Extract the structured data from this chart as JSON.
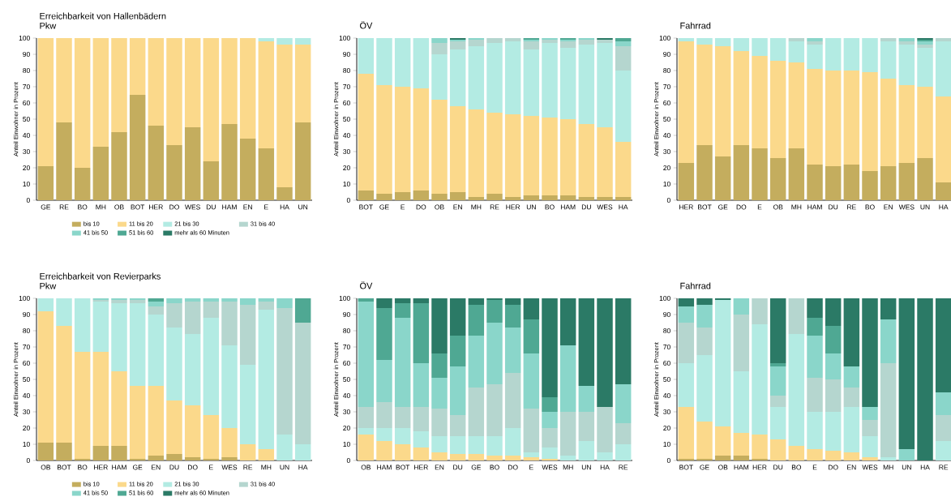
{
  "chart_data": [
    {
      "type": "bar",
      "stacked": true,
      "title": "Erreichbarkeit von Hallenbädern",
      "subtitle": "Pkw",
      "ylabel": "Anteil Einwohner in Prozent",
      "legend": "bottom",
      "ylim": [
        0,
        100
      ],
      "yticks": [
        0,
        10,
        20,
        30,
        40,
        50,
        60,
        70,
        80,
        90,
        100
      ],
      "categories": [
        "GE",
        "RE",
        "BO",
        "MH",
        "OB",
        "BOT",
        "HER",
        "DO",
        "WES",
        "DU",
        "HAM",
        "EN",
        "E",
        "HA",
        "UN"
      ],
      "series": [
        {
          "name": "bis 10",
          "color": "#c4ad5e",
          "values": [
            21,
            48,
            20,
            33,
            42,
            65,
            46,
            34,
            45,
            24,
            47,
            38,
            32,
            8,
            48
          ]
        },
        {
          "name": "11 bis 20",
          "color": "#fbd98b",
          "values": [
            79,
            52,
            80,
            67,
            58,
            35,
            54,
            66,
            55,
            76,
            53,
            62,
            66,
            88,
            48
          ]
        },
        {
          "name": "21 bis 30",
          "color": "#b3ebe3",
          "values": [
            0,
            0,
            0,
            0,
            0,
            0,
            0,
            0,
            0,
            0,
            0,
            0,
            2,
            4,
            4
          ]
        },
        {
          "name": "31 bis 40",
          "color": "#b5d6cf",
          "values": [
            0,
            0,
            0,
            0,
            0,
            0,
            0,
            0,
            0,
            0,
            0,
            0,
            0,
            0,
            0
          ]
        },
        {
          "name": "41 bis 50",
          "color": "#8ad6ca",
          "values": [
            0,
            0,
            0,
            0,
            0,
            0,
            0,
            0,
            0,
            0,
            0,
            0,
            0,
            0,
            0
          ]
        },
        {
          "name": "51 bis 60",
          "color": "#4fa893",
          "values": [
            0,
            0,
            0,
            0,
            0,
            0,
            0,
            0,
            0,
            0,
            0,
            0,
            0,
            0,
            0
          ]
        },
        {
          "name": "mehr als 60 Minuten",
          "color": "#2b7a66",
          "values": [
            0,
            0,
            0,
            0,
            0,
            0,
            0,
            0,
            0,
            0,
            0,
            0,
            0,
            0,
            0
          ]
        }
      ]
    },
    {
      "type": "bar",
      "stacked": true,
      "title": "ÖV",
      "ylabel": "Anteil Einwohner in Prozent",
      "ylim": [
        0,
        100
      ],
      "yticks": [
        0,
        10,
        20,
        30,
        40,
        50,
        60,
        70,
        80,
        90,
        100
      ],
      "categories": [
        "BOT",
        "GE",
        "E",
        "DO",
        "OB",
        "EN",
        "MH",
        "RE",
        "HER",
        "UN",
        "BO",
        "HAM",
        "DU",
        "WES",
        "HA"
      ],
      "series": [
        {
          "color": "#c4ad5e",
          "values": [
            6,
            4,
            5,
            6,
            4,
            5,
            2,
            4,
            2,
            3,
            3,
            3,
            2,
            2,
            2
          ]
        },
        {
          "color": "#fbd98b",
          "values": [
            72,
            67,
            65,
            63,
            58,
            53,
            54,
            50,
            51,
            49,
            48,
            47,
            45,
            43,
            34
          ]
        },
        {
          "color": "#b3ebe3",
          "values": [
            22,
            29,
            30,
            31,
            28,
            35,
            39,
            43,
            45,
            41,
            46,
            44,
            49,
            52,
            44
          ]
        },
        {
          "color": "#b5d6cf",
          "values": [
            0,
            0,
            0,
            0,
            7,
            5,
            4,
            3,
            2,
            5,
            2,
            4,
            3,
            2,
            15
          ]
        },
        {
          "color": "#8ad6ca",
          "values": [
            0,
            0,
            0,
            0,
            3,
            1,
            1,
            0,
            0,
            1,
            1,
            1,
            1,
            0,
            3
          ]
        },
        {
          "color": "#4fa893",
          "values": [
            0,
            0,
            0,
            0,
            0,
            0,
            0,
            0,
            0,
            1,
            0,
            1,
            0,
            0,
            2
          ]
        },
        {
          "color": "#2b7a66",
          "values": [
            0,
            0,
            0,
            0,
            0,
            1,
            0,
            0,
            0,
            0,
            0,
            0,
            0,
            1,
            0
          ]
        }
      ]
    },
    {
      "type": "bar",
      "stacked": true,
      "title": "Fahrrad",
      "ylabel": "Anteil Einwohner in Prozent",
      "ylim": [
        0,
        100
      ],
      "yticks": [
        0,
        10,
        20,
        30,
        40,
        50,
        60,
        70,
        80,
        90,
        100
      ],
      "categories": [
        "HER",
        "BOT",
        "GE",
        "DO",
        "E",
        "OB",
        "MH",
        "HAM",
        "DU",
        "RE",
        "BO",
        "EN",
        "WES",
        "UN",
        "HA"
      ],
      "series": [
        {
          "color": "#c4ad5e",
          "values": [
            23,
            34,
            27,
            34,
            32,
            26,
            32,
            22,
            21,
            22,
            18,
            21,
            23,
            26,
            11
          ]
        },
        {
          "color": "#fbd98b",
          "values": [
            75,
            62,
            68,
            58,
            57,
            60,
            53,
            59,
            59,
            58,
            61,
            54,
            48,
            44,
            53
          ]
        },
        {
          "color": "#b3ebe3",
          "values": [
            2,
            4,
            5,
            8,
            11,
            14,
            13,
            15,
            20,
            20,
            21,
            23,
            25,
            24,
            34
          ]
        },
        {
          "color": "#b5d6cf",
          "values": [
            0,
            0,
            0,
            0,
            0,
            0,
            2,
            2,
            0,
            0,
            0,
            2,
            2,
            2,
            2
          ]
        },
        {
          "color": "#8ad6ca",
          "values": [
            0,
            0,
            0,
            0,
            0,
            0,
            0,
            2,
            0,
            0,
            0,
            0,
            2,
            2,
            0
          ]
        },
        {
          "color": "#4fa893",
          "values": [
            0,
            0,
            0,
            0,
            0,
            0,
            0,
            0,
            0,
            0,
            0,
            0,
            0,
            1,
            0
          ]
        },
        {
          "color": "#2b7a66",
          "values": [
            0,
            0,
            0,
            0,
            0,
            0,
            0,
            0,
            0,
            0,
            0,
            0,
            0,
            1,
            0
          ]
        }
      ]
    },
    {
      "type": "bar",
      "stacked": true,
      "title": "Erreichbarkeit von Revierparks",
      "subtitle": "Pkw",
      "ylabel": "Anteil Einwohner in Prozent",
      "legend": "bottom",
      "ylim": [
        0,
        100
      ],
      "yticks": [
        0,
        10,
        20,
        30,
        40,
        50,
        60,
        70,
        80,
        90,
        100
      ],
      "categories": [
        "OB",
        "BOT",
        "BO",
        "HER",
        "HAM",
        "GE",
        "EN",
        "DU",
        "DO",
        "E",
        "WES",
        "RE",
        "MH",
        "UN",
        "HA"
      ],
      "series": [
        {
          "name": "bis 10",
          "color": "#c4ad5e",
          "values": [
            11,
            11,
            1,
            9,
            9,
            1,
            3,
            4,
            2,
            1,
            2,
            0,
            0,
            0,
            0
          ]
        },
        {
          "name": "11 bis 20",
          "color": "#fbd98b",
          "values": [
            81,
            72,
            66,
            58,
            46,
            45,
            43,
            33,
            32,
            27,
            18,
            10,
            7,
            0,
            0
          ]
        },
        {
          "name": "21 bis 30",
          "color": "#b3ebe3",
          "values": [
            8,
            17,
            33,
            31,
            42,
            51,
            44,
            45,
            44,
            60,
            51,
            49,
            86,
            16,
            10
          ]
        },
        {
          "name": "31 bis 40",
          "color": "#b5d6cf",
          "values": [
            0,
            0,
            0,
            1,
            2,
            2,
            5,
            15,
            20,
            10,
            27,
            37,
            5,
            78,
            75
          ]
        },
        {
          "name": "41 bis 50",
          "color": "#8ad6ca",
          "values": [
            0,
            0,
            0,
            1,
            1,
            1,
            3,
            3,
            2,
            2,
            2,
            4,
            2,
            6,
            0
          ]
        },
        {
          "name": "51 bis 60",
          "color": "#4fa893",
          "values": [
            0,
            0,
            0,
            0,
            0,
            0,
            2,
            0,
            0,
            0,
            0,
            0,
            0,
            0,
            15
          ]
        },
        {
          "name": "mehr als 60 Minuten",
          "color": "#2b7a66",
          "values": [
            0,
            0,
            0,
            0,
            0,
            0,
            0,
            0,
            0,
            0,
            0,
            0,
            0,
            0,
            0
          ]
        }
      ]
    },
    {
      "type": "bar",
      "stacked": true,
      "title": "ÖV",
      "ylabel": "Anteil Einwohner in Prozent",
      "ylim": [
        0,
        100
      ],
      "yticks": [
        0,
        10,
        20,
        30,
        40,
        50,
        60,
        70,
        80,
        90,
        100
      ],
      "categories": [
        "OB",
        "HAM",
        "BOT",
        "HER",
        "EN",
        "DU",
        "GE",
        "BO",
        "DO",
        "E",
        "WES",
        "MH",
        "UN",
        "HA",
        "RE"
      ],
      "series": [
        {
          "color": "#c4ad5e",
          "values": [
            0,
            0,
            0,
            0,
            0,
            0,
            0,
            0,
            0,
            0,
            0,
            0,
            0,
            0,
            0
          ]
        },
        {
          "color": "#fbd98b",
          "values": [
            16,
            12,
            10,
            8,
            5,
            4,
            4,
            3,
            3,
            2,
            1,
            0,
            0,
            0,
            0
          ]
        },
        {
          "color": "#b3ebe3",
          "values": [
            4,
            8,
            10,
            10,
            10,
            11,
            11,
            12,
            17,
            3,
            7,
            3,
            12,
            5,
            10
          ]
        },
        {
          "color": "#b5d6cf",
          "values": [
            13,
            16,
            13,
            15,
            17,
            13,
            30,
            32,
            34,
            27,
            12,
            27,
            18,
            28,
            13
          ]
        },
        {
          "color": "#8ad6ca",
          "values": [
            65,
            26,
            55,
            27,
            19,
            30,
            32,
            38,
            28,
            34,
            10,
            41,
            16,
            0,
            24
          ]
        },
        {
          "color": "#4fa893",
          "values": [
            2,
            32,
            9,
            37,
            15,
            19,
            19,
            14,
            14,
            21,
            9,
            0,
            0,
            0,
            0
          ]
        },
        {
          "color": "#2b7a66",
          "values": [
            0,
            6,
            3,
            3,
            34,
            23,
            4,
            1,
            4,
            13,
            61,
            29,
            54,
            67,
            53
          ]
        }
      ]
    },
    {
      "type": "bar",
      "stacked": true,
      "title": "Fahrrad",
      "ylabel": "Anteil Einwohner in Prozent",
      "ylim": [
        0,
        100
      ],
      "yticks": [
        0,
        10,
        20,
        30,
        40,
        50,
        60,
        70,
        80,
        90,
        100
      ],
      "categories": [
        "BOT",
        "GE",
        "OB",
        "HAM",
        "HER",
        "DU",
        "BO",
        "E",
        "DO",
        "EN",
        "WES",
        "MH",
        "UN",
        "HA",
        "RE"
      ],
      "series": [
        {
          "color": "#c4ad5e",
          "values": [
            1,
            1,
            3,
            3,
            1,
            0,
            0,
            0,
            0,
            0,
            0,
            0,
            0,
            0,
            0
          ]
        },
        {
          "color": "#fbd98b",
          "values": [
            32,
            23,
            18,
            14,
            15,
            13,
            9,
            7,
            6,
            5,
            2,
            0,
            0,
            0,
            0
          ]
        },
        {
          "color": "#b3ebe3",
          "values": [
            27,
            41,
            78,
            38,
            68,
            20,
            69,
            23,
            24,
            28,
            13,
            2,
            0,
            0,
            12
          ]
        },
        {
          "color": "#b5d6cf",
          "values": [
            25,
            17,
            0,
            35,
            16,
            7,
            22,
            21,
            20,
            12,
            10,
            58,
            0,
            0,
            16
          ]
        },
        {
          "color": "#8ad6ca",
          "values": [
            10,
            14,
            0,
            10,
            0,
            18,
            0,
            26,
            16,
            13,
            8,
            27,
            7,
            0,
            14
          ]
        },
        {
          "color": "#4fa893",
          "values": [
            0,
            0,
            0,
            0,
            0,
            2,
            0,
            11,
            17,
            0,
            0,
            0,
            0,
            0,
            0
          ]
        },
        {
          "color": "#2b7a66",
          "values": [
            5,
            4,
            1,
            0,
            0,
            40,
            0,
            12,
            17,
            42,
            67,
            13,
            93,
            100,
            58
          ]
        }
      ]
    }
  ]
}
